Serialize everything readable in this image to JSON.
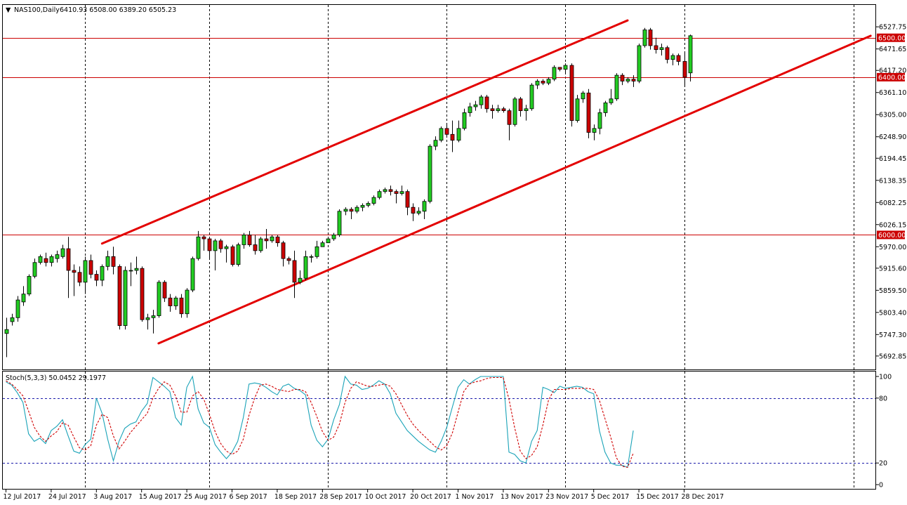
{
  "header": {
    "arrow": "▼",
    "symbol_text": "NAS100,Daily",
    "ohlc_text": "6410.93 6508.00 6389.20 6505.23"
  },
  "stoch_header": {
    "text": "Stoch(5,3,3) 50.0452 29.1977"
  },
  "colors": {
    "bull": "#22cc22",
    "bear": "#cc0000",
    "level_line": "#cc0000",
    "channel": "#e30000",
    "stoch_main": "#1aa3b8",
    "stoch_signal": "#d00000",
    "grid": "#000000",
    "level_tag_bg": "#cc0000",
    "stoch_level_line": "#1a1aaa"
  },
  "chart_data": [
    {
      "type": "candlestick",
      "title": "NAS100,Daily",
      "ylim": [
        5665.0,
        6545.0
      ],
      "y_ticks": [
        "6527.75",
        "6471.65",
        "6417.20",
        "6361.10",
        "6305.00",
        "6248.90",
        "6194.45",
        "6138.35",
        "6082.25",
        "6026.15",
        "5970.00",
        "5915.60",
        "5859.50",
        "5803.40",
        "5747.30",
        "5692.85"
      ],
      "x_labels": [
        "12 Jul 2017",
        "24 Jul 2017",
        "3 Aug 2017",
        "15 Aug 2017",
        "25 Aug 2017",
        "6 Sep 2017",
        "18 Sep 2017",
        "28 Sep 2017",
        "10 Oct 2017",
        "20 Oct 2017",
        "1 Nov 2017",
        "13 Nov 2017",
        "23 Nov 2017",
        "5 Dec 2017",
        "15 Dec 2017",
        "28 Dec 2017"
      ],
      "x_label_bars": [
        0,
        8,
        16,
        24,
        32,
        40,
        48,
        56,
        64,
        72,
        80,
        88,
        96,
        104,
        112,
        120
      ],
      "vlines_bars": [
        14,
        36,
        57,
        78,
        99,
        120,
        150
      ],
      "horizontal_levels": [
        {
          "value": 6500.0,
          "tag": "6500.00"
        },
        {
          "value": 6400.0,
          "tag": "6400.00"
        },
        {
          "value": 6000.0,
          "tag": "6000.00"
        }
      ],
      "channel_lines": [
        {
          "name": "upper",
          "from": {
            "bar": 17,
            "price": 5978
          },
          "to": {
            "bar": 110,
            "price": 6544
          }
        },
        {
          "name": "lower",
          "from": {
            "bar": 27,
            "price": 5725
          },
          "to": {
            "bar": 153,
            "price": 6505
          }
        }
      ],
      "candles": [
        [
          5750,
          5760,
          5690,
          5790
        ],
        [
          5780,
          5790,
          5770,
          5800
        ],
        [
          5790,
          5835,
          5780,
          5845
        ],
        [
          5830,
          5850,
          5820,
          5870
        ],
        [
          5850,
          5895,
          5845,
          5900
        ],
        [
          5895,
          5930,
          5890,
          5940
        ],
        [
          5930,
          5945,
          5925,
          5950
        ],
        [
          5940,
          5930,
          5920,
          5955
        ],
        [
          5930,
          5945,
          5920,
          5950
        ],
        [
          5940,
          5950,
          5930,
          5960
        ],
        [
          5945,
          5965,
          5940,
          5975
        ],
        [
          5965,
          5910,
          5840,
          5995
        ],
        [
          5910,
          5905,
          5845,
          5925
        ],
        [
          5905,
          5880,
          5870,
          5920
        ],
        [
          5880,
          5935,
          5850,
          5945
        ],
        [
          5935,
          5900,
          5890,
          5950
        ],
        [
          5900,
          5885,
          5870,
          5910
        ],
        [
          5885,
          5920,
          5870,
          5925
        ],
        [
          5920,
          5945,
          5910,
          5960
        ],
        [
          5945,
          5920,
          5900,
          5970
        ],
        [
          5920,
          5770,
          5760,
          5925
        ],
        [
          5770,
          5910,
          5760,
          5920
        ],
        [
          5910,
          5910,
          5870,
          5930
        ],
        [
          5910,
          5915,
          5900,
          5945
        ],
        [
          5915,
          5785,
          5780,
          5920
        ],
        [
          5785,
          5790,
          5760,
          5800
        ],
        [
          5790,
          5795,
          5750,
          5810
        ],
        [
          5795,
          5880,
          5790,
          5885
        ],
        [
          5880,
          5840,
          5830,
          5885
        ],
        [
          5840,
          5820,
          5805,
          5850
        ],
        [
          5820,
          5840,
          5810,
          5845
        ],
        [
          5840,
          5800,
          5790,
          5850
        ],
        [
          5800,
          5860,
          5790,
          5865
        ],
        [
          5860,
          5940,
          5855,
          5945
        ],
        [
          5940,
          5995,
          5935,
          6010
        ],
        [
          5995,
          5990,
          5960,
          6000
        ],
        [
          5990,
          5960,
          5940,
          5995
        ],
        [
          5960,
          5985,
          5910,
          5990
        ],
        [
          5985,
          5965,
          5955,
          5990
        ],
        [
          5965,
          5970,
          5930,
          5975
        ],
        [
          5970,
          5925,
          5920,
          5975
        ],
        [
          5925,
          5975,
          5920,
          5980
        ],
        [
          5975,
          6000,
          5965,
          6005
        ],
        [
          6000,
          5975,
          5970,
          6010
        ],
        [
          5975,
          5960,
          5950,
          6000
        ],
        [
          5960,
          5990,
          5955,
          5995
        ],
        [
          5990,
          5985,
          5965,
          6015
        ],
        [
          5985,
          5995,
          5980,
          6000
        ],
        [
          5995,
          5980,
          5970,
          6000
        ],
        [
          5980,
          5940,
          5920,
          5985
        ],
        [
          5940,
          5935,
          5925,
          5945
        ],
        [
          5935,
          5880,
          5840,
          5960
        ],
        [
          5880,
          5890,
          5875,
          5910
        ],
        [
          5890,
          5945,
          5885,
          5960
        ],
        [
          5945,
          5945,
          5930,
          5950
        ],
        [
          5945,
          5970,
          5940,
          5985
        ],
        [
          5970,
          5980,
          5975,
          5985
        ],
        [
          5980,
          5990,
          5980,
          5995
        ],
        [
          5990,
          6000,
          5985,
          6005
        ],
        [
          6000,
          6060,
          5995,
          6065
        ],
        [
          6060,
          6065,
          6050,
          6070
        ],
        [
          6065,
          6060,
          6040,
          6070
        ],
        [
          6060,
          6070,
          6055,
          6075
        ],
        [
          6070,
          6075,
          6060,
          6080
        ],
        [
          6075,
          6080,
          6070,
          6085
        ],
        [
          6080,
          6095,
          6075,
          6100
        ],
        [
          6095,
          6110,
          6090,
          6115
        ],
        [
          6110,
          6115,
          6105,
          6120
        ],
        [
          6115,
          6110,
          6100,
          6125
        ],
        [
          6110,
          6105,
          6080,
          6115
        ],
        [
          6105,
          6110,
          6100,
          6125
        ],
        [
          6110,
          6070,
          6050,
          6115
        ],
        [
          6070,
          6055,
          6035,
          6080
        ],
        [
          6055,
          6060,
          6050,
          6070
        ],
        [
          6060,
          6085,
          6040,
          6090
        ],
        [
          6085,
          6225,
          6080,
          6230
        ],
        [
          6225,
          6240,
          6215,
          6250
        ],
        [
          6240,
          6270,
          6235,
          6275
        ],
        [
          6270,
          6255,
          6250,
          6280
        ],
        [
          6255,
          6240,
          6210,
          6290
        ],
        [
          6240,
          6270,
          6235,
          6290
        ],
        [
          6270,
          6310,
          6265,
          6320
        ],
        [
          6310,
          6325,
          6300,
          6335
        ],
        [
          6325,
          6330,
          6315,
          6340
        ],
        [
          6330,
          6350,
          6320,
          6355
        ],
        [
          6350,
          6320,
          6310,
          6355
        ],
        [
          6320,
          6315,
          6295,
          6330
        ],
        [
          6315,
          6320,
          6310,
          6330
        ],
        [
          6320,
          6315,
          6310,
          6325
        ],
        [
          6315,
          6280,
          6240,
          6320
        ],
        [
          6280,
          6345,
          6275,
          6350
        ],
        [
          6345,
          6315,
          6300,
          6350
        ],
        [
          6315,
          6320,
          6290,
          6330
        ],
        [
          6320,
          6380,
          6315,
          6385
        ],
        [
          6380,
          6390,
          6370,
          6395
        ],
        [
          6390,
          6385,
          6380,
          6395
        ],
        [
          6385,
          6395,
          6380,
          6400
        ],
        [
          6395,
          6425,
          6390,
          6430
        ],
        [
          6425,
          6420,
          6415,
          6425
        ],
        [
          6420,
          6430,
          6410,
          6435
        ],
        [
          6430,
          6290,
          6275,
          6435
        ],
        [
          6290,
          6345,
          6285,
          6355
        ],
        [
          6345,
          6360,
          6335,
          6365
        ],
        [
          6360,
          6260,
          6245,
          6370
        ],
        [
          6260,
          6270,
          6240,
          6280
        ],
        [
          6270,
          6310,
          6255,
          6320
        ],
        [
          6310,
          6335,
          6300,
          6340
        ],
        [
          6335,
          6345,
          6330,
          6370
        ],
        [
          6345,
          6405,
          6340,
          6410
        ],
        [
          6405,
          6390,
          6380,
          6410
        ],
        [
          6390,
          6395,
          6385,
          6400
        ],
        [
          6395,
          6390,
          6375,
          6405
        ],
        [
          6390,
          6480,
          6385,
          6485
        ],
        [
          6480,
          6520,
          6475,
          6525
        ],
        [
          6520,
          6480,
          6470,
          6525
        ],
        [
          6480,
          6470,
          6460,
          6500
        ],
        [
          6470,
          6475,
          6455,
          6485
        ],
        [
          6475,
          6445,
          6435,
          6480
        ],
        [
          6445,
          6455,
          6430,
          6460
        ],
        [
          6455,
          6440,
          6430,
          6460
        ],
        [
          6440,
          6400,
          6380,
          6465
        ],
        [
          6410.93,
          6505.23,
          6389.2,
          6508.0
        ]
      ]
    },
    {
      "type": "line",
      "title": "Stoch(5,3,3)",
      "ylim": [
        0,
        100
      ],
      "y_ticks": [
        "100",
        "80",
        "20",
        "0"
      ],
      "levels": [
        80,
        20
      ],
      "series": [
        {
          "name": "main",
          "values": [
            95,
            92,
            85,
            76,
            47,
            40,
            43,
            38,
            50,
            54,
            60,
            45,
            31,
            29,
            37,
            42,
            80,
            66,
            42,
            22,
            40,
            52,
            56,
            58,
            68,
            75,
            99,
            95,
            91,
            86,
            62,
            55,
            90,
            100,
            70,
            57,
            53,
            37,
            30,
            24,
            30,
            40,
            62,
            93,
            94,
            93,
            90,
            86,
            83,
            91,
            93,
            89,
            87,
            83,
            55,
            41,
            35,
            42,
            60,
            74,
            100,
            93,
            92,
            88,
            89,
            92,
            96,
            93,
            84,
            66,
            58,
            50,
            45,
            40,
            36,
            32,
            30,
            40,
            53,
            72,
            90,
            97,
            93,
            97,
            100,
            100,
            100,
            100,
            100,
            30,
            28,
            22,
            20,
            40,
            50,
            90,
            88,
            85,
            91,
            89,
            90,
            91,
            90,
            86,
            84,
            50,
            30,
            20,
            18,
            18,
            16,
            50
          ]
        },
        {
          "name": "signal",
          "values": [
            96,
            93,
            88,
            82,
            68,
            53,
            45,
            40,
            45,
            49,
            57,
            55,
            44,
            34,
            32,
            36,
            55,
            65,
            62,
            45,
            33,
            40,
            48,
            54,
            60,
            66,
            80,
            89,
            95,
            92,
            82,
            67,
            67,
            82,
            86,
            79,
            65,
            49,
            38,
            31,
            28,
            31,
            42,
            64,
            80,
            92,
            93,
            91,
            88,
            87,
            86,
            88,
            88,
            86,
            76,
            63,
            49,
            41,
            44,
            56,
            76,
            89,
            95,
            93,
            91,
            91,
            92,
            93,
            91,
            84,
            74,
            64,
            56,
            50,
            45,
            40,
            35,
            32,
            36,
            48,
            67,
            86,
            93,
            95,
            96,
            98,
            99,
            99,
            99,
            79,
            53,
            31,
            24,
            27,
            35,
            55,
            78,
            88,
            88,
            88,
            89,
            89,
            89,
            89,
            88,
            78,
            61,
            44,
            25,
            17,
            16,
            29
          ]
        }
      ]
    }
  ]
}
